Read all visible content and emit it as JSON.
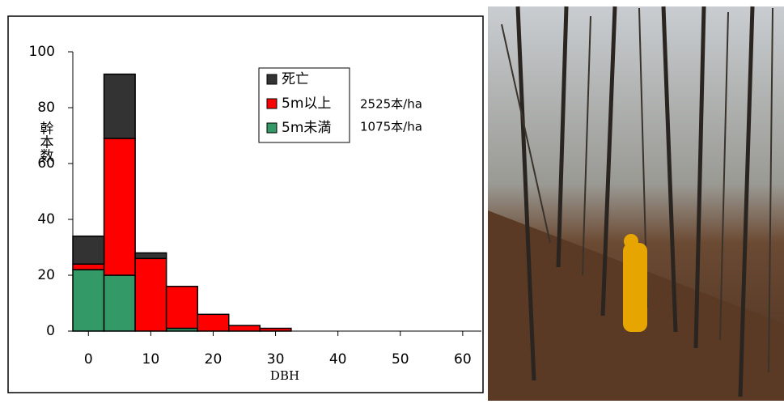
{
  "chart_data": {
    "type": "histogram",
    "bins": [
      -2.5,
      2.5,
      7.5,
      12.5,
      17.5,
      22.5,
      27.5,
      32.5
    ],
    "series": [
      {
        "name": "5m未満",
        "color": "#339966",
        "values": [
          22,
          20,
          0,
          1,
          0,
          0,
          0
        ]
      },
      {
        "name": "5m以上",
        "color": "#ff0000",
        "values": [
          2,
          49,
          26,
          15,
          6,
          2,
          1
        ]
      },
      {
        "name": "死亡",
        "color": "#333333",
        "values": [
          10,
          23,
          2,
          0,
          0,
          0,
          0
        ]
      }
    ],
    "x_label": "DBH",
    "y_label": "幹本数",
    "annotations": [
      "2525本/ha",
      "1075本/ha"
    ],
    "xlim": [
      -2.5,
      63
    ],
    "xticks": [
      0,
      10,
      20,
      30,
      40,
      50,
      60
    ],
    "ylim": [
      0,
      100
    ],
    "yticks": [
      0,
      20,
      40,
      60,
      80,
      100
    ]
  }
}
